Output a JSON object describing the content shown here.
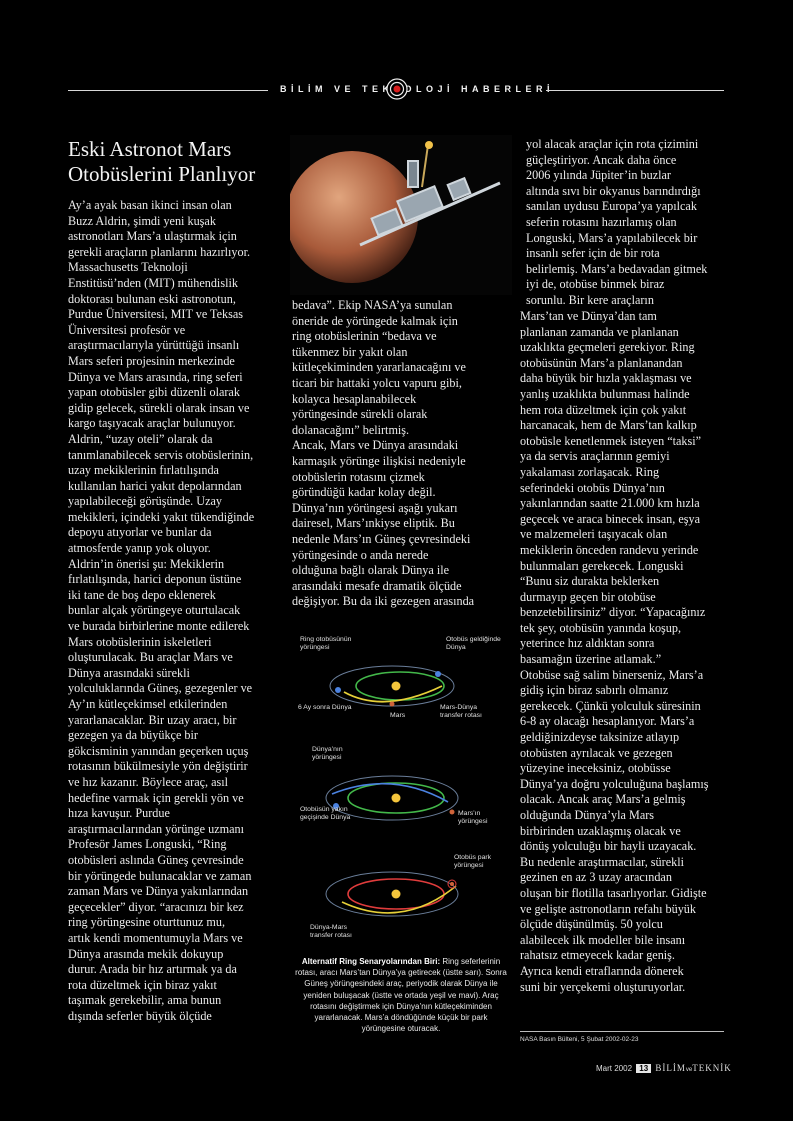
{
  "header": {
    "section": "BİLİM VE TEKNOLOJİ HABERLERİ"
  },
  "article": {
    "title": "Eski Astronot Mars\nOtobüslerini Planlıyor",
    "col1": "Ay’a ayak basan ikinci insan olan\nBuzz Aldrin, şimdi yeni kuşak\nastronotları Mars’a ulaştırmak için\ngerekli araçların planlarını hazırlıyor.\nMassachusetts Teknoloji\nEnstitüsü’nden (MIT) mühendislik\ndoktorası bulunan eski astronotun,\nPurdue Üniversitesi, MIT ve Teksas\nÜniversitesi  profesör ve\naraştırmacılarıyla yürüttüğü insanlı\nMars seferi projesinin merkezinde\nDünya ve Mars arasında, ring seferi\nyapan otobüsler gibi düzenli olarak\ngidip gelecek, sürekli olarak insan ve\nkargo taşıyacak araçlar bulunuyor.\nAldrin, “uzay oteli” olarak da\ntanımlanabilecek servis otobüslerinin,\nuzay mekiklerinin fırlatılışında\nkullanılan harici yakıt depolarından\nyapılabileceği görüşünde. Uzay\nmekikleri, içindeki yakıt tükendiğinde\ndepoyu atıyorlar  ve bunlar da\natmosferde yanıp yok oluyor.\nAldrin’in önerisi şu: Mekiklerin\nfırlatılışında, harici deponun üstüne\niki tane de boş depo eklenerek\nbunlar alçak yörüngeye oturtulacak\nve burada birbirlerine monte edilerek\nMars otobüslerinin iskeletleri\noluşturulacak.  Bu araçlar  Mars ve\nDünya arasındaki sürekli\nyolculuklarında Güneş, gezegenler ve\nAy’ın kütleçekimsel etkilerinden\nyararlanacaklar. Bir uzay aracı,  bir\ngezegen ya da büyükçe bir\ngökcisminin yanından geçerken uçuş\nrotasının bükülmesiyle yön değiştirir\nve hız kazanır. Böylece araç, asıl\nhedefine varmak için gerekli yön ve\nhıza kavuşur. Purdue\naraştırmacılarından yörünge uzmanı\nProfesör James Longuski, “Ring\notobüsleri aslında Güneş çevresinde\nbir yörüngede bulunacaklar ve zaman\nzaman Mars ve Dünya yakınlarından\ngeçecekler” diyor. “aracınızı bir kez\nring  yörüngesine oturttunuz mu,\nartık kendi momentumuyla  Mars ve\nDünya arasında mekik dokuyup\ndurur. Arada bir hız artırmak ya da\nrota düzeltmek için biraz yakıt\ntaşımak gerekebilir, ama bunun\ndışında seferler büyük ölçüde",
    "col2": "bedava”. Ekip NASA’ya sunulan\nöneride de yörüngede kalmak için\nring otobüslerinin “bedava ve\ntükenmez bir yakıt olan\nkütleçekiminden yararlanacağını ve\nticari bir hattaki yolcu vapuru gibi,\nkolayca hesaplanabilecek\nyörüngesinde sürekli olarak\ndolanacağını” belirtmiş.\nAncak, Mars ve Dünya arasındaki\nkarmaşık yörünge ilişkisi nedeniyle\notobüslerin rotasını çizmek\ngöründüğü kadar kolay değil.\nDünya’nın yörüngesi aşağı yukarı\ndairesel, Mars’ınkiyse eliptik. Bu\nnedenle Mars’ın Güneş çevresindeki\nyörüngesinde o anda nerede\nolduğuna bağlı olarak Dünya ile\narasındaki mesafe dramatik ölçüde\ndeğişiyor. Bu da iki gezegen arasında",
    "col3a": "yol alacak araçlar için rota çizimini\ngüçleştiriyor. Ancak daha önce\n2006 yılında Jüpiter’in buzlar\naltında sıvı bir okyanus barındırdığı\nsanılan uydusu Europa’ya yapılcak\nseferin rotasını hazırlamış olan\nLonguski, Mars’a yapılabilecek bir\ninsanlı sefer için de bir rota\nbelirlemiş. Mars’a bedavadan gitmek\niyi de, otobüse binmek biraz\nsorunlu. Bir kere araçların",
    "col3b": "Mars’tan ve Dünya’dan tam\nplanlanan zamanda ve planlanan\nuzaklıkta geçmeleri gerekiyor. Ring\notobüsünün Mars’a planlanandan\ndaha büyük bir hızla yaklaşması ve\nyanlış uzaklıkta bulunması halinde\nhem rota düzeltmek için çok yakıt\nharcanacak, hem de Mars’tan kalkıp\notobüsle kenetlenmek isteyen “taksi”\nya da servis araçlarının gemiyi\nyakalaması zorlaşacak. Ring\nseferindeki otobüs Dünya’nın\nyakınlarından saatte 21.000 km hızla\ngeçecek ve araca binecek insan, eşya\nve malzemeleri taşıyacak olan\nmekiklerin önceden randevu yerinde\nbulunmaları gerekecek. Longuski\n“Bunu siz durakta beklerken\ndurmayıp geçen bir otobüse\nbenzetebilirsiniz” diyor. “Yapacağınız\ntek şey, otobüsün yanında koşup,\nyeterince hız aldıktan sonra\nbasamağın üzerine atlamak.”\nOtobüse sağ salim binerseniz, Mars’a\ngidiş için biraz sabırlı olmanız\ngerekecek. Çünkü yolculuk süresinin\n6-8 ay olacağı hesaplanıyor. Mars’a\ngeldiğinizdeyse taksinize atlayıp\notobüsten ayrılacak ve gezegen\nyüzeyine ineceksiniz, otobüsse\nDünya’ya doğru yolculuğuna başlamış\nolacak. Ancak araç Mars’a gelmiş\nolduğunda Dünya’yla Mars\nbirbirinden uzaklaşmış olacak ve\ndönüş yolculuğu bir hayli uzayacak.\nBu nedenle araştırmacılar, sürekli\ngezinen en az 3 uzay aracından\noluşan bir flotilla tasarlıyorlar. Gidişte\nve gelişte astronotların refahı büyük\nölçüde düşünülmüş. 50 yolcu\nalabilecek ilk modeller bile insanı\nrahatsız etmeyecek kadar geniş.\nAyrıca kendi etraflarında dönerek\nsuni bir yerçekemi oluşturuyorlar."
  },
  "diagram": {
    "labels": {
      "ring_orbit": "Ring otobüsünün\nyörüngesi",
      "bus_arrived": "Otobüs geldiğinde\nDünya",
      "six_months": "6 Ay sonra Dünya",
      "mars": "Mars",
      "mars_earth_rota": "Mars-Dünya\ntransfer rotası",
      "earth_orbit": "Dünya’nın\nyörüngesi",
      "near_pass": "Otobüsün yakın\ngeçişinde Dünya",
      "mars_orbit": "Mars’ın\nyörüngesi",
      "bus_park": "Otobüs park\nyörüngesi",
      "earth_mars_rota": "Dünya-Mars\ntransfer rotası"
    },
    "caption_bold": "Alternatif Ring Senaryolarından Biri:",
    "caption_text": " Ring seferlerinin rotası, aracı Mars’tan Dünya’ya getirecek (üstte sarı). Sonra Güneş yörüngesindeki araç, periyodik olarak Dünya ile yeniden buluşacak (üstte ve ortada yeşil ve mavi). Araç rotasını değiştirmek için Dünya’nın kütleçekiminden yararlanacak. Mars’a döndüğünde küçük bir park yörüngesine oturacak."
  },
  "source": "NASA Basın Bülteni, 5 Şubat 2002-02-23",
  "footer": {
    "date": "Mart 2002",
    "page": "13",
    "mag1": "BİLİM",
    "mag_ve": "ve",
    "mag2": "TEKNİK"
  }
}
